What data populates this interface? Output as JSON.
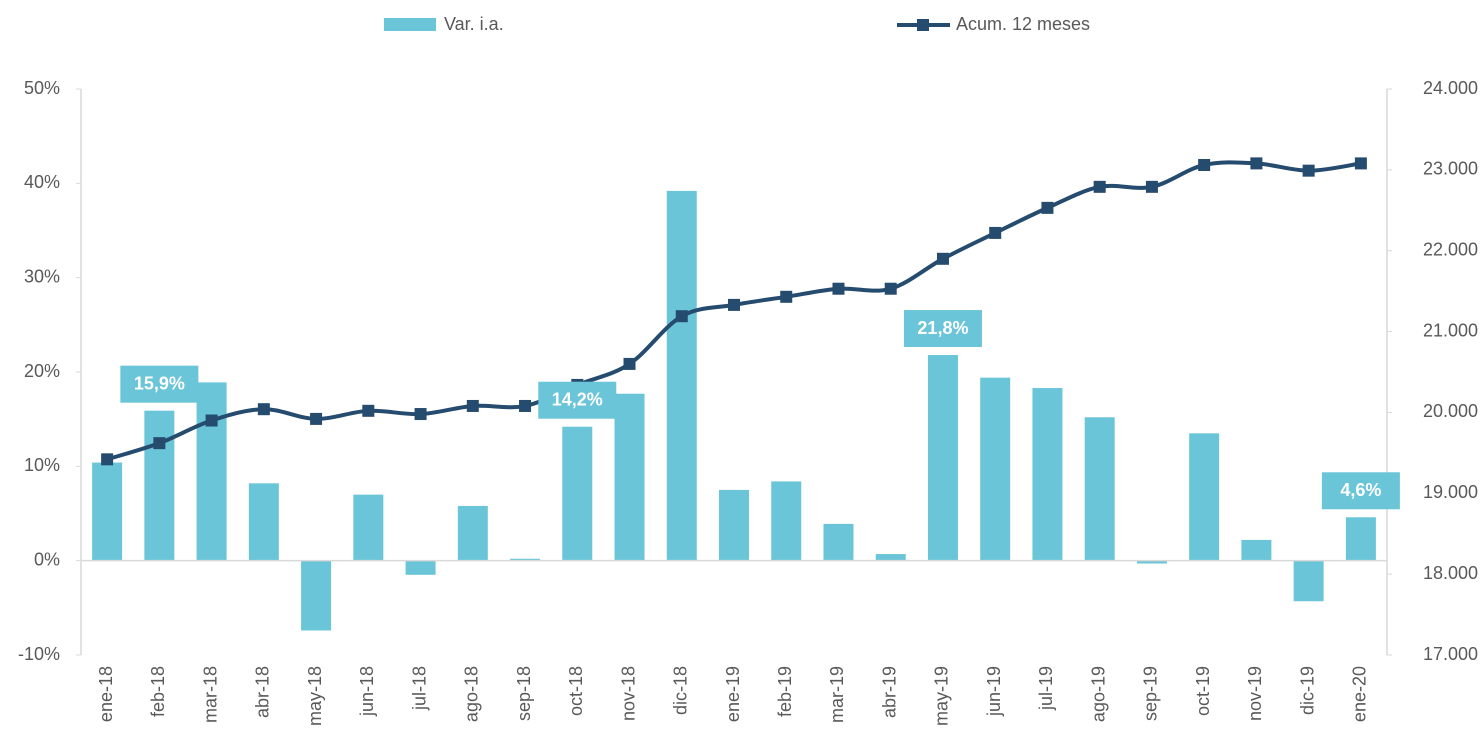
{
  "chart_data": {
    "type": "bar_line",
    "categories": [
      "ene-18",
      "feb-18",
      "mar-18",
      "abr-18",
      "may-18",
      "jun-18",
      "jul-18",
      "ago-18",
      "sep-18",
      "oct-18",
      "nov-18",
      "dic-18",
      "ene-19",
      "feb-19",
      "mar-19",
      "abr-19",
      "may-19",
      "jun-19",
      "jul-19",
      "ago-19",
      "sep-19",
      "oct-19",
      "nov-19",
      "dic-19",
      "ene-20"
    ],
    "series": [
      {
        "name": "Var. i.a.",
        "type": "bar",
        "color": "#6bc5d8",
        "values": [
          10.4,
          15.9,
          18.9,
          8.2,
          -7.4,
          7.0,
          -1.5,
          5.8,
          0.2,
          14.2,
          17.7,
          39.2,
          7.5,
          8.4,
          3.9,
          0.7,
          21.8,
          19.4,
          18.3,
          15.2,
          -0.3,
          13.5,
          2.2,
          -4.3,
          4.6
        ],
        "value_labels": [
          null,
          "15,9%",
          null,
          null,
          null,
          null,
          null,
          null,
          null,
          "14,2%",
          null,
          null,
          null,
          null,
          null,
          null,
          "21,8%",
          null,
          null,
          null,
          null,
          null,
          null,
          null,
          "4,6%"
        ]
      },
      {
        "name": "Acum. 12 meses",
        "type": "line",
        "axis": "y2",
        "color": "#254b6e",
        "values": [
          19420,
          19620,
          19900,
          20040,
          19920,
          20020,
          19980,
          20080,
          20080,
          20340,
          20600,
          21190,
          21330,
          21430,
          21530,
          21530,
          21900,
          22220,
          22530,
          22790,
          22790,
          23060,
          23080,
          22990,
          23080
        ]
      }
    ],
    "ylim": [
      -10,
      50
    ],
    "yticks": [
      {
        "value": -10,
        "label": "-10%"
      },
      {
        "value": 0,
        "label": "0%"
      },
      {
        "value": 10,
        "label": "10%"
      },
      {
        "value": 20,
        "label": "20%"
      },
      {
        "value": 30,
        "label": "30%"
      },
      {
        "value": 40,
        "label": "40%"
      },
      {
        "value": 50,
        "label": "50%"
      }
    ],
    "y2lim": [
      17000,
      24000
    ],
    "y2ticks": [
      {
        "value": 17000,
        "label": "17.000"
      },
      {
        "value": 18000,
        "label": "18.000"
      },
      {
        "value": 19000,
        "label": "19.000"
      },
      {
        "value": 20000,
        "label": "20.000"
      },
      {
        "value": 21000,
        "label": "21.000"
      },
      {
        "value": 22000,
        "label": "22.000"
      },
      {
        "value": 23000,
        "label": "23.000"
      },
      {
        "value": 24000,
        "label": "24.000"
      }
    ],
    "legend": "top",
    "grid": false
  }
}
